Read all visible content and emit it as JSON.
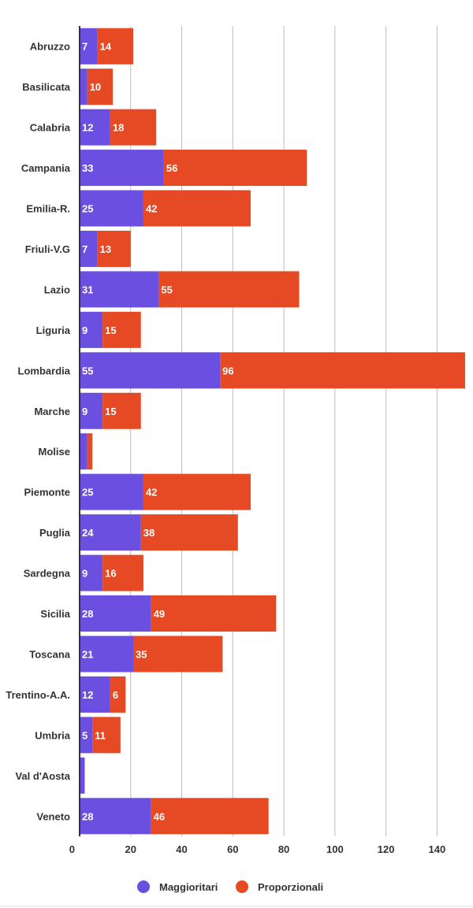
{
  "chart_data": {
    "type": "bar",
    "orientation": "horizontal",
    "stacked": true,
    "categories": [
      "Abruzzo",
      "Basilicata",
      "Calabria",
      "Campania",
      "Emilia-R.",
      "Friuli-V.G",
      "Lazio",
      "Liguria",
      "Lombardia",
      "Marche",
      "Molise",
      "Piemonte",
      "Puglia",
      "Sardegna",
      "Sicilia",
      "Toscana",
      "Trentino-A.A.",
      "Umbria",
      "Val d'Aosta",
      "Veneto"
    ],
    "series": [
      {
        "name": "Maggioritari",
        "color": "#6a4fe0",
        "values": [
          7,
          3,
          12,
          33,
          25,
          7,
          31,
          9,
          55,
          9,
          3,
          25,
          24,
          9,
          28,
          21,
          12,
          5,
          2,
          28
        ],
        "labels": [
          "7",
          "",
          "12",
          "33",
          "25",
          "7",
          "31",
          "9",
          "55",
          "9",
          "",
          "25",
          "24",
          "9",
          "28",
          "21",
          "12",
          "5",
          "",
          "28"
        ]
      },
      {
        "name": "Proporzionali",
        "color": "#e64a24",
        "values": [
          14,
          10,
          18,
          56,
          42,
          13,
          55,
          15,
          96,
          15,
          2,
          42,
          38,
          16,
          49,
          35,
          6,
          11,
          0,
          46
        ],
        "labels": [
          "14",
          "10",
          "18",
          "56",
          "42",
          "13",
          "55",
          "15",
          "96",
          "15",
          "",
          "42",
          "38",
          "16",
          "49",
          "35",
          "6",
          "11",
          "",
          "46"
        ]
      }
    ],
    "xticks": [
      0,
      20,
      40,
      60,
      80,
      100,
      120,
      140
    ],
    "xlim": [
      0,
      151
    ],
    "grid": true,
    "legend_position": "bottom",
    "title": "",
    "xlabel": "",
    "ylabel": ""
  },
  "legend": {
    "items": [
      {
        "label": "Maggioritari",
        "color": "#6a4fe0"
      },
      {
        "label": "Proporzionali",
        "color": "#e64a24"
      }
    ]
  }
}
